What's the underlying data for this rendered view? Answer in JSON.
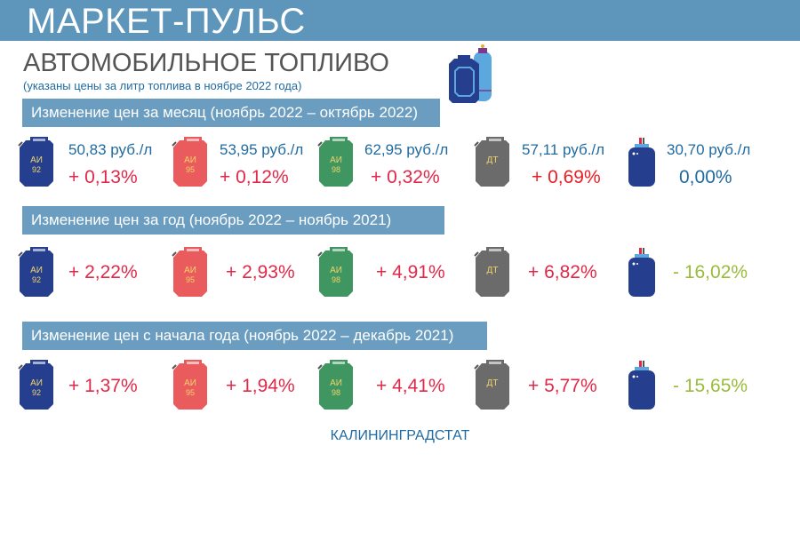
{
  "header": {
    "title": "МАРКЕТ-ПУЛЬС"
  },
  "title": "АВТОМОБИЛЬНОЕ ТОПЛИВО",
  "subtitle": "(указаны цены за литр топлива в ноябре 2022 года)",
  "fuels": [
    {
      "label1": "АИ",
      "label2": "92",
      "icon": "canister-icon",
      "color": "#253f8e"
    },
    {
      "label1": "АИ",
      "label2": "95",
      "icon": "canister-icon",
      "color": "#ea5b5d"
    },
    {
      "label1": "АИ",
      "label2": "98",
      "icon": "canister-icon",
      "color": "#3f9660"
    },
    {
      "label1": "ДТ",
      "label2": "",
      "icon": "canister-icon",
      "color": "#6b6b6b"
    },
    {
      "label1": "",
      "label2": "",
      "icon": "gas-cylinder-icon",
      "color": "#253f8e"
    }
  ],
  "sections": [
    {
      "title": "Изменение цен за месяц (ноябрь 2022 – октябрь 2022)",
      "prices": [
        "50,83 руб./л",
        "53,95 руб./л",
        "62,95 руб./л",
        "57,11 руб./л",
        "30,70 руб./л"
      ],
      "changes": [
        "+ 0,13%",
        "+ 0,12%",
        "+ 0,32%",
        "+ 0,69%",
        "0,00%"
      ]
    },
    {
      "title": "Изменение цен за год (ноябрь 2022 – ноябрь 2021)",
      "changes": [
        "+ 2,22%",
        "+ 2,93%",
        "+ 4,91%",
        "+ 6,82%",
        "- 16,02%"
      ]
    },
    {
      "title": "Изменение цен с начала года (ноябрь 2022 – декабрь 2021)",
      "changes": [
        "+ 1,37%",
        "+ 1,94%",
        "+ 4,41%",
        "+ 5,77%",
        "- 15,65%"
      ]
    }
  ],
  "colors": {
    "header": "#5d95bb",
    "section": "#6a9dc0",
    "text_blue": "#1f6aa0",
    "increase": "#e0284a",
    "decrease": "#9bbb3b"
  },
  "footer": "КАЛИНИНГРАДСТАТ"
}
